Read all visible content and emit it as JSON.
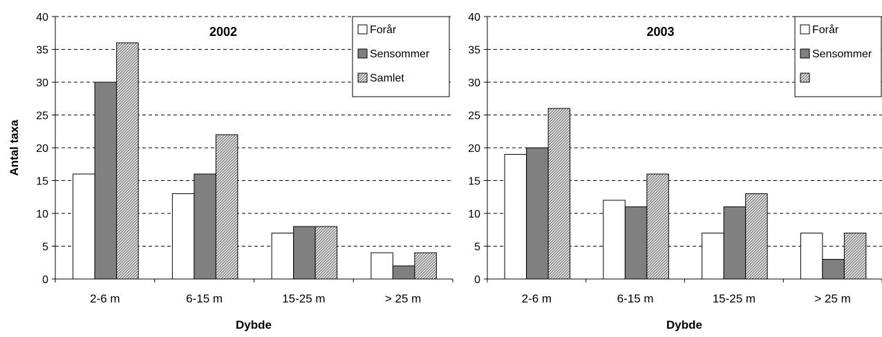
{
  "chart_data": [
    {
      "type": "bar",
      "title": "2002",
      "xlabel": "Dybde",
      "ylabel": "Antal taxa",
      "categories": [
        "2-6 m",
        "6-15 m",
        "15-25 m",
        "> 25 m"
      ],
      "ylim": [
        0,
        40
      ],
      "yticks": [
        0,
        5,
        10,
        15,
        20,
        25,
        30,
        35,
        40
      ],
      "grid": true,
      "legend_position": "top-right",
      "series": [
        {
          "name": "Forår",
          "values": [
            16,
            13,
            7,
            4
          ],
          "color": "#ffffff",
          "pattern": "solid"
        },
        {
          "name": "Sensommer",
          "values": [
            30,
            16,
            8,
            2
          ],
          "color": "#808080",
          "pattern": "solid"
        },
        {
          "name": "Samlet",
          "values": [
            36,
            22,
            8,
            4
          ],
          "color": "#c8c8c8",
          "pattern": "hatch"
        }
      ]
    },
    {
      "type": "bar",
      "title": "2003",
      "xlabel": "Dybde",
      "ylabel": "",
      "categories": [
        "2-6 m",
        "6-15 m",
        "15-25 m",
        "> 25 m"
      ],
      "ylim": [
        0,
        40
      ],
      "yticks": [
        0,
        5,
        10,
        15,
        20,
        25,
        30,
        35,
        40
      ],
      "grid": true,
      "legend_position": "top-right",
      "series": [
        {
          "name": "Forår",
          "values": [
            19,
            12,
            7,
            7
          ],
          "color": "#ffffff",
          "pattern": "solid"
        },
        {
          "name": "Sensommer",
          "values": [
            20,
            11,
            11,
            3
          ],
          "color": "#808080",
          "pattern": "solid"
        },
        {
          "name": "",
          "values": [
            26,
            16,
            13,
            7
          ],
          "color": "#c8c8c8",
          "pattern": "hatch"
        }
      ]
    }
  ]
}
